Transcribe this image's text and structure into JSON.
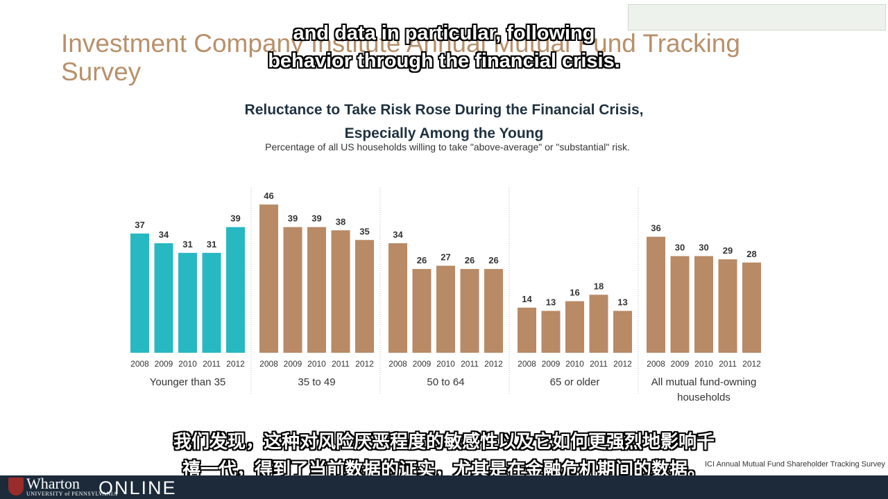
{
  "slide": {
    "title": "Investment Company Institute Annual Mutual Fund Tracking Survey",
    "source": "ICI Annual Mutual Fund Shareholder Tracking Survey"
  },
  "subtitles": {
    "en_line1": "and data in particular, following",
    "en_line2": "behavior through the financial crisis.",
    "zh_line1": "我们发现，这种对风险厌恶程度的敏感性以及它如何更强烈地影响千",
    "zh_line2": "禧一代，得到了当前数据的证实，尤其是在金融危机期间的数据。"
  },
  "footer": {
    "brand": "Wharton",
    "university": "UNIVERSITY of PENNSYLVANIA",
    "online": "ONLINE"
  },
  "colors": {
    "highlight": "#27b8c2",
    "bar": "#b88a66",
    "title": "#b8906a"
  },
  "chart_data": {
    "type": "bar",
    "title_line1": "Reluctance to Take Risk Rose During the Financial Crisis,",
    "title_line2": "Especially Among the Young",
    "subtitle": "Percentage of all US households willing to take \"above-average\" or \"substantial\" risk.",
    "categories": [
      "2008",
      "2009",
      "2010",
      "2011",
      "2012"
    ],
    "groups": [
      {
        "name": "Younger than 35",
        "name_line2": "",
        "values": [
          37,
          34,
          31,
          31,
          39
        ],
        "highlight": true
      },
      {
        "name": "35 to 49",
        "name_line2": "",
        "values": [
          46,
          39,
          39,
          38,
          35
        ],
        "highlight": false
      },
      {
        "name": "50 to 64",
        "name_line2": "",
        "values": [
          34,
          26,
          27,
          26,
          26
        ],
        "highlight": false
      },
      {
        "name": "65 or older",
        "name_line2": "",
        "values": [
          14,
          13,
          16,
          18,
          13
        ],
        "highlight": false
      },
      {
        "name": "All mutual fund-owning",
        "name_line2": "households",
        "values": [
          36,
          30,
          30,
          29,
          28
        ],
        "highlight": false
      }
    ],
    "ylim": [
      0,
      46
    ],
    "grid": false,
    "legend": "none"
  }
}
